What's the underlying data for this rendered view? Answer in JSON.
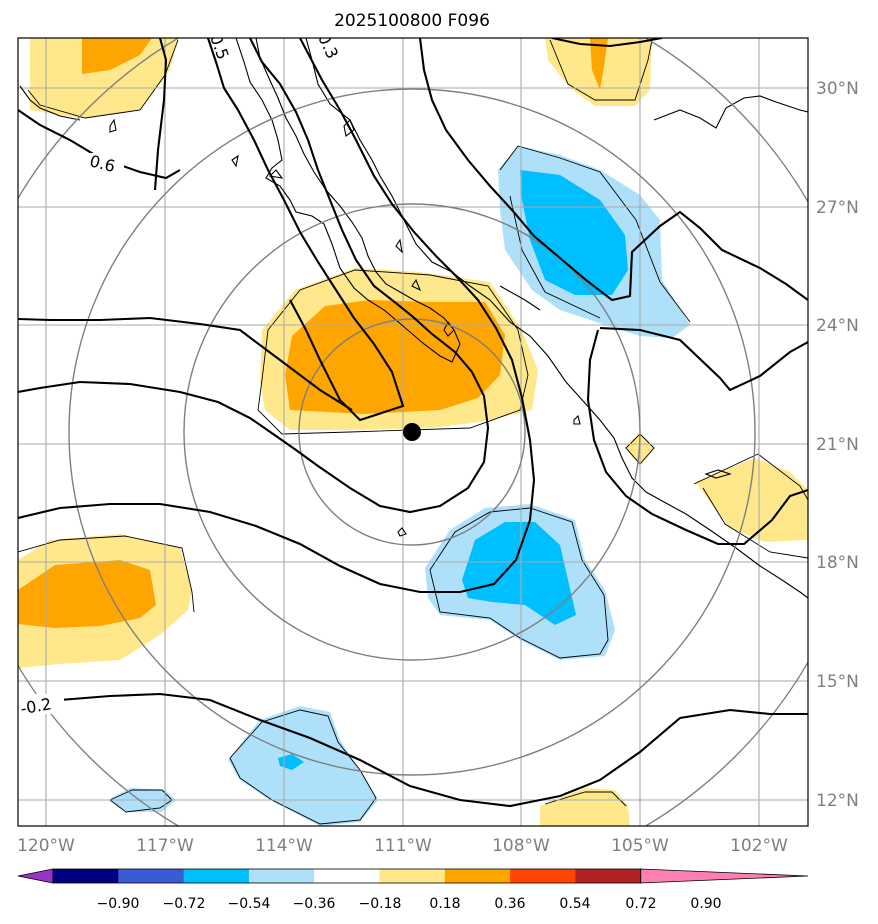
{
  "chart_data": {
    "type": "contour-map",
    "title": "2025100800 F096",
    "x_tick_labels": [
      "120°W",
      "117°W",
      "114°W",
      "111°W",
      "108°W",
      "105°W",
      "102°W"
    ],
    "x_tick_values": [
      -120,
      -117,
      -114,
      -111,
      -108,
      -105,
      -102
    ],
    "y_tick_labels": [
      "12°N",
      "15°N",
      "18°N",
      "21°N",
      "24°N",
      "27°N",
      "30°N"
    ],
    "y_tick_values": [
      12,
      15,
      18,
      21,
      24,
      27,
      30
    ],
    "lon_range": [
      -120.8,
      -100.8
    ],
    "lat_range": [
      11.3,
      31.3
    ],
    "center_marker": {
      "lon": -110.8,
      "lat": 21.35
    },
    "contour_labels": [
      "0.6",
      "0.5",
      "0.3",
      "-0.2"
    ],
    "colorbar": {
      "tick_labels": [
        "−0.90",
        "−0.72",
        "−0.54",
        "−0.36",
        "−0.18",
        "0.18",
        "0.36",
        "0.54",
        "0.72",
        "0.90"
      ],
      "levels": [
        -0.9,
        -0.72,
        -0.54,
        -0.36,
        -0.18,
        0.18,
        0.36,
        0.54,
        0.72,
        0.9
      ],
      "colors": [
        "#9933cc",
        "#000080",
        "#3b5bd6",
        "#00bfff",
        "#aee0fa",
        "#ffffff",
        "#ffe88c",
        "#ffa500",
        "#ff4500",
        "#b22222",
        "#ff80b0"
      ]
    },
    "colors": {
      "positive_light": "#ffe88c",
      "positive_mid": "#ffa500",
      "negative_light": "#aee0fa",
      "negative_mid": "#00bfff",
      "grid": "#aaaaaa",
      "range_rings": "#7f7f7f"
    }
  }
}
